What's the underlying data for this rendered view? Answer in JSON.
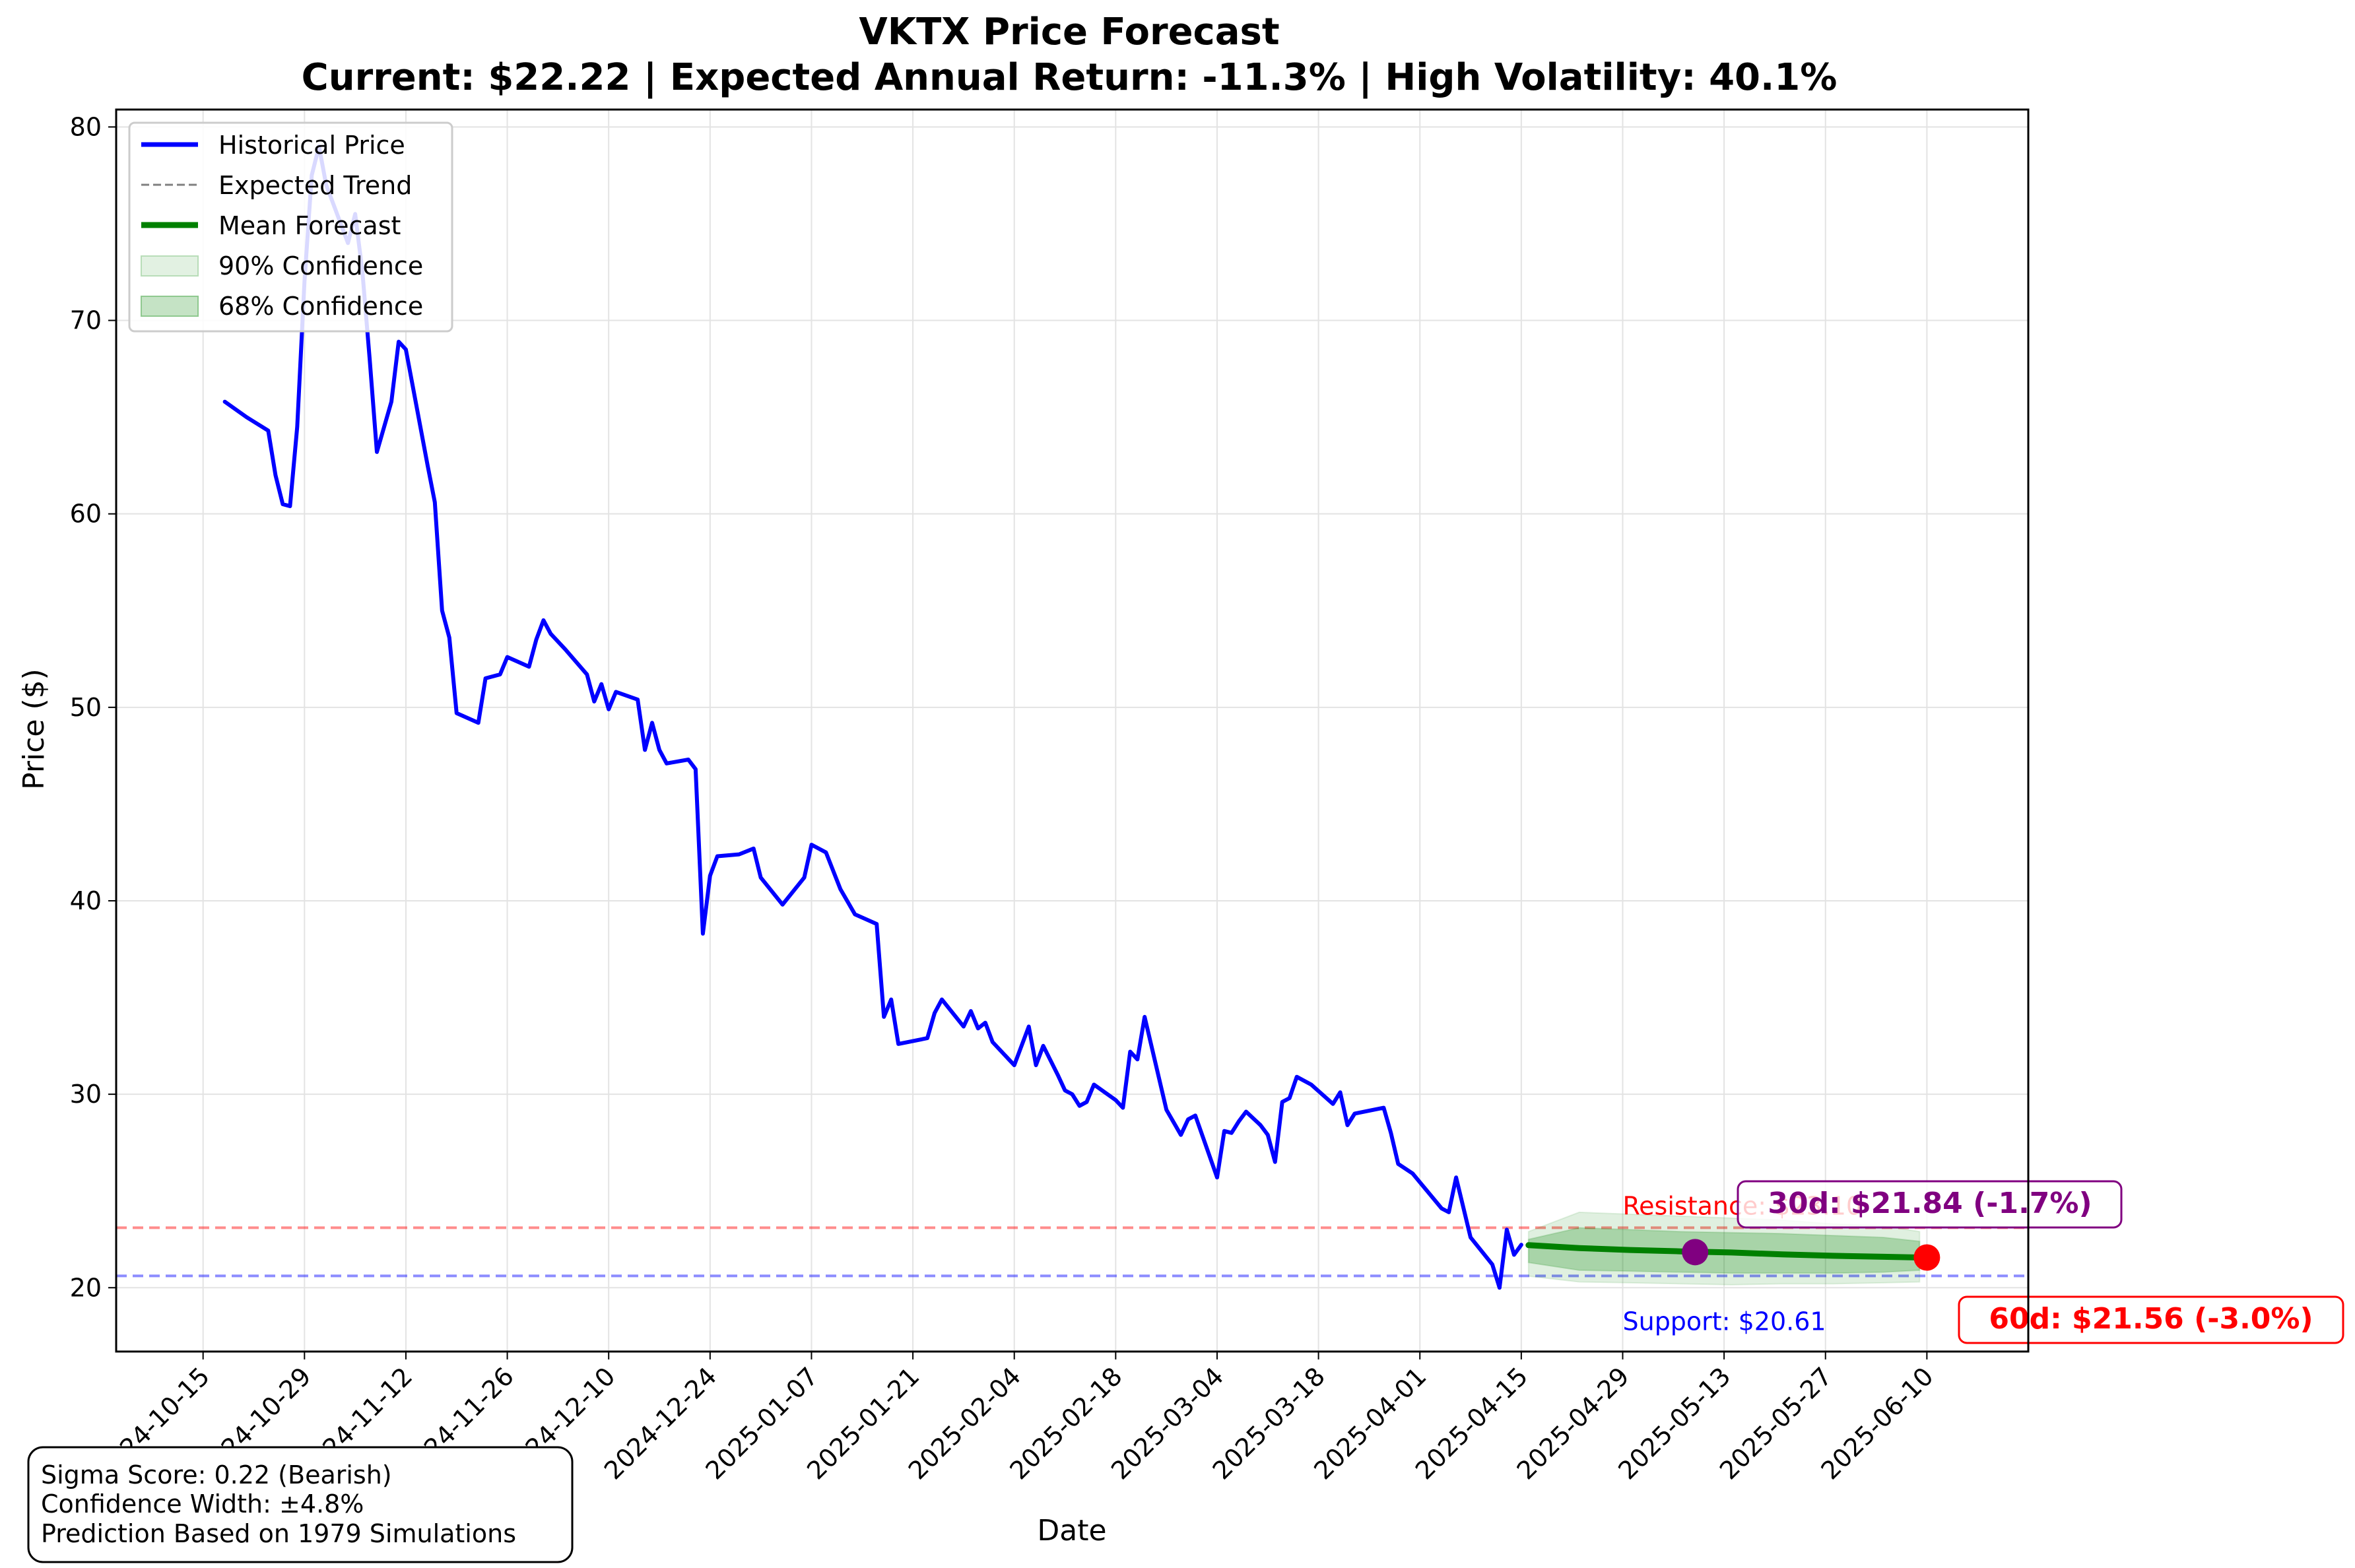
{
  "chart_data": {
    "type": "line",
    "title": "VKTX Price Forecast",
    "subtitle": "Current: $22.22 | Expected Annual Return: -11.3% | High Volatility: 40.1%",
    "xlabel": "Date",
    "ylabel": "Price ($)",
    "ylim": [
      16.7,
      80.9
    ],
    "xlim": [
      "2024-10-03",
      "2025-06-24"
    ],
    "grid": true,
    "legend_position": "top-left",
    "x_ticks": [
      "2024-10-15",
      "2024-10-29",
      "2024-11-12",
      "2024-11-26",
      "2024-12-10",
      "2024-12-24",
      "2025-01-07",
      "2025-01-21",
      "2025-02-04",
      "2025-02-18",
      "2025-03-04",
      "2025-03-18",
      "2025-04-01",
      "2025-04-15",
      "2025-04-29",
      "2025-05-13",
      "2025-05-27",
      "2025-06-10"
    ],
    "y_ticks": [
      20,
      30,
      40,
      50,
      60,
      70,
      80
    ],
    "legend": [
      {
        "label": "Historical Price",
        "style": "line",
        "color": "#0000ff"
      },
      {
        "label": "Expected Trend",
        "style": "dashed",
        "color": "#808080"
      },
      {
        "label": "Mean Forecast",
        "style": "line",
        "color": "#008000"
      },
      {
        "label": "90% Confidence",
        "style": "patch",
        "color": "#e2f1e2"
      },
      {
        "label": "68% Confidence",
        "style": "patch",
        "color": "#c5e3c5"
      }
    ],
    "series": [
      {
        "name": "Historical Price",
        "color": "#0000ff",
        "points": [
          [
            "2024-10-18",
            65.8
          ],
          [
            "2024-10-21",
            65.0
          ],
          [
            "2024-10-24",
            64.3
          ],
          [
            "2024-10-25",
            62.0
          ],
          [
            "2024-10-26",
            60.5
          ],
          [
            "2024-10-27",
            60.4
          ],
          [
            "2024-10-28",
            64.5
          ],
          [
            "2024-10-29",
            72.0
          ],
          [
            "2024-10-30",
            77.5
          ],
          [
            "2024-10-31",
            79.0
          ],
          [
            "2024-11-01",
            77.0
          ],
          [
            "2024-11-02",
            76.0
          ],
          [
            "2024-11-04",
            74.0
          ],
          [
            "2024-11-05",
            75.5
          ],
          [
            "2024-11-06",
            72.5
          ],
          [
            "2024-11-07",
            68.0
          ],
          [
            "2024-11-08",
            63.2
          ],
          [
            "2024-11-09",
            64.5
          ],
          [
            "2024-11-10",
            65.8
          ],
          [
            "2024-11-11",
            68.9
          ],
          [
            "2024-11-12",
            68.5
          ],
          [
            "2024-11-13",
            66.5
          ],
          [
            "2024-11-14",
            64.5
          ],
          [
            "2024-11-15",
            62.5
          ],
          [
            "2024-11-16",
            60.6
          ],
          [
            "2024-11-17",
            55.0
          ],
          [
            "2024-11-18",
            53.6
          ],
          [
            "2024-11-19",
            49.7
          ],
          [
            "2024-11-22",
            49.2
          ],
          [
            "2024-11-23",
            51.5
          ],
          [
            "2024-11-25",
            51.7
          ],
          [
            "2024-11-26",
            52.6
          ],
          [
            "2024-11-29",
            52.1
          ],
          [
            "2024-11-30",
            53.5
          ],
          [
            "2024-12-01",
            54.5
          ],
          [
            "2024-12-02",
            53.8
          ],
          [
            "2024-12-04",
            53.0
          ],
          [
            "2024-12-07",
            51.7
          ],
          [
            "2024-12-08",
            50.3
          ],
          [
            "2024-12-09",
            51.2
          ],
          [
            "2024-12-10",
            49.9
          ],
          [
            "2024-12-11",
            50.8
          ],
          [
            "2024-12-14",
            50.4
          ],
          [
            "2024-12-15",
            47.8
          ],
          [
            "2024-12-16",
            49.2
          ],
          [
            "2024-12-17",
            47.8
          ],
          [
            "2024-12-18",
            47.1
          ],
          [
            "2024-12-21",
            47.3
          ],
          [
            "2024-12-22",
            46.8
          ],
          [
            "2024-12-23",
            38.3
          ],
          [
            "2024-12-24",
            41.3
          ],
          [
            "2024-12-25",
            42.3
          ],
          [
            "2024-12-28",
            42.4
          ],
          [
            "2024-12-30",
            42.7
          ],
          [
            "2024-12-31",
            41.2
          ],
          [
            "2025-01-03",
            39.8
          ],
          [
            "2025-01-06",
            41.2
          ],
          [
            "2025-01-07",
            42.9
          ],
          [
            "2025-01-09",
            42.5
          ],
          [
            "2025-01-11",
            40.6
          ],
          [
            "2025-01-13",
            39.3
          ],
          [
            "2025-01-16",
            38.8
          ],
          [
            "2025-01-17",
            34.0
          ],
          [
            "2025-01-18",
            34.9
          ],
          [
            "2025-01-19",
            32.6
          ],
          [
            "2025-01-23",
            32.9
          ],
          [
            "2025-01-24",
            34.2
          ],
          [
            "2025-01-25",
            34.9
          ],
          [
            "2025-01-28",
            33.5
          ],
          [
            "2025-01-29",
            34.3
          ],
          [
            "2025-01-30",
            33.4
          ],
          [
            "2025-01-31",
            33.7
          ],
          [
            "2025-02-01",
            32.7
          ],
          [
            "2025-02-04",
            31.5
          ],
          [
            "2025-02-06",
            33.5
          ],
          [
            "2025-02-07",
            31.5
          ],
          [
            "2025-02-08",
            32.5
          ],
          [
            "2025-02-10",
            31.0
          ],
          [
            "2025-02-11",
            30.2
          ],
          [
            "2025-02-12",
            30.0
          ],
          [
            "2025-02-13",
            29.4
          ],
          [
            "2025-02-14",
            29.6
          ],
          [
            "2025-02-15",
            30.5
          ],
          [
            "2025-02-18",
            29.7
          ],
          [
            "2025-02-19",
            29.3
          ],
          [
            "2025-02-20",
            32.2
          ],
          [
            "2025-02-21",
            31.8
          ],
          [
            "2025-02-22",
            34.0
          ],
          [
            "2025-02-25",
            29.2
          ],
          [
            "2025-02-27",
            27.9
          ],
          [
            "2025-02-28",
            28.7
          ],
          [
            "2025-03-01",
            28.9
          ],
          [
            "2025-03-04",
            25.7
          ],
          [
            "2025-03-05",
            28.1
          ],
          [
            "2025-03-06",
            28.0
          ],
          [
            "2025-03-07",
            28.6
          ],
          [
            "2025-03-08",
            29.1
          ],
          [
            "2025-03-10",
            28.4
          ],
          [
            "2025-03-11",
            27.9
          ],
          [
            "2025-03-12",
            26.5
          ],
          [
            "2025-03-13",
            29.6
          ],
          [
            "2025-03-14",
            29.8
          ],
          [
            "2025-03-15",
            30.9
          ],
          [
            "2025-03-17",
            30.5
          ],
          [
            "2025-03-20",
            29.5
          ],
          [
            "2025-03-21",
            30.1
          ],
          [
            "2025-03-22",
            28.4
          ],
          [
            "2025-03-23",
            29.0
          ],
          [
            "2025-03-27",
            29.3
          ],
          [
            "2025-03-28",
            28.0
          ],
          [
            "2025-03-29",
            26.4
          ],
          [
            "2025-03-31",
            25.9
          ],
          [
            "2025-04-04",
            24.1
          ],
          [
            "2025-04-05",
            23.9
          ],
          [
            "2025-04-06",
            25.7
          ],
          [
            "2025-04-08",
            22.6
          ],
          [
            "2025-04-11",
            21.2
          ],
          [
            "2025-04-12",
            20.0
          ],
          [
            "2025-04-13",
            23.0
          ],
          [
            "2025-04-14",
            21.7
          ],
          [
            "2025-04-15",
            22.22
          ]
        ]
      },
      {
        "name": "Mean Forecast",
        "color": "#008000",
        "points": [
          [
            "2025-04-16",
            22.2
          ],
          [
            "2025-04-23",
            22.05
          ],
          [
            "2025-04-30",
            21.95
          ],
          [
            "2025-05-07",
            21.88
          ],
          [
            "2025-05-14",
            21.82
          ],
          [
            "2025-05-21",
            21.72
          ],
          [
            "2025-05-28",
            21.65
          ],
          [
            "2025-06-04",
            21.6
          ],
          [
            "2025-06-09",
            21.56
          ]
        ]
      }
    ],
    "confidence_bands": [
      {
        "name": "90% Confidence",
        "lower": [
          20.6,
          20.3,
          20.25,
          20.2,
          20.15,
          20.2,
          20.2,
          20.25,
          20.3
        ],
        "upper": [
          22.9,
          23.9,
          23.8,
          23.7,
          23.6,
          23.5,
          23.3,
          23.2,
          22.9
        ]
      },
      {
        "name": "68% Confidence",
        "lower": [
          21.3,
          20.9,
          20.85,
          20.8,
          20.75,
          20.75,
          20.75,
          20.8,
          20.9
        ],
        "upper": [
          22.5,
          23.1,
          23.0,
          22.9,
          22.85,
          22.8,
          22.7,
          22.6,
          22.4
        ]
      }
    ],
    "reference_lines": [
      {
        "label": "Resistance: $23.10",
        "value": 23.1,
        "color": "#ff0000"
      },
      {
        "label": "Support: $20.61",
        "value": 20.61,
        "color": "#0000ff"
      }
    ],
    "markers": [
      {
        "label": "30d: $21.84 (-1.7%)",
        "date": "2025-05-09",
        "value": 21.84,
        "color": "#800080"
      },
      {
        "label": "60d: $21.56 (-3.0%)",
        "date": "2025-06-10",
        "value": 21.56,
        "color": "#ff0000"
      }
    ],
    "info_box": [
      "Sigma Score: 0.22 (Bearish)",
      "Confidence Width: ±4.8%",
      "Prediction Based on 1979 Simulations"
    ]
  }
}
